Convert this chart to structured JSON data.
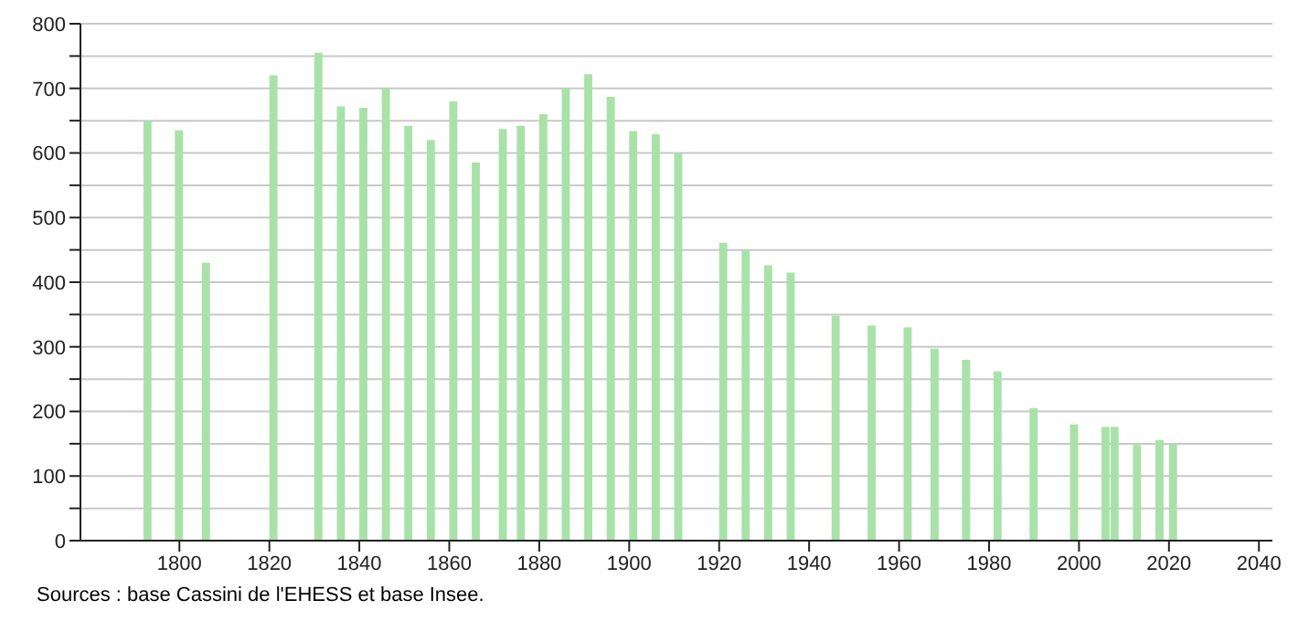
{
  "chart_data": {
    "type": "bar",
    "x": [
      1793,
      1800,
      1806,
      1821,
      1831,
      1836,
      1841,
      1846,
      1851,
      1856,
      1861,
      1866,
      1872,
      1876,
      1881,
      1886,
      1891,
      1896,
      1901,
      1906,
      1911,
      1921,
      1926,
      1931,
      1936,
      1946,
      1954,
      1962,
      1968,
      1975,
      1982,
      1990,
      1999,
      2006,
      2008,
      2013,
      2018,
      2021
    ],
    "values": [
      650,
      635,
      430,
      720,
      755,
      672,
      670,
      700,
      642,
      620,
      680,
      585,
      637,
      642,
      660,
      700,
      722,
      687,
      634,
      629,
      600,
      461,
      450,
      426,
      415,
      348,
      333,
      330,
      297,
      280,
      262,
      205,
      180,
      176,
      176,
      148,
      156,
      150
    ],
    "color": "#a8e2a8",
    "xlim": [
      1778,
      2043
    ],
    "xticks": [
      1800,
      1820,
      1840,
      1860,
      1880,
      1900,
      1920,
      1940,
      1960,
      1980,
      2000,
      2020,
      2040
    ],
    "ylim": [
      0,
      800
    ],
    "yticks": [
      0,
      {
        "value": 50,
        "label": null
      },
      100,
      {
        "value": 150,
        "label": null
      },
      200,
      {
        "value": 250,
        "label": null
      },
      300,
      {
        "value": 350,
        "label": null
      },
      400,
      {
        "value": 450,
        "label": null
      },
      500,
      {
        "value": 550,
        "label": null
      },
      600,
      {
        "value": 650,
        "label": null
      },
      700,
      {
        "value": 750,
        "label": null
      },
      800
    ],
    "grid": "y",
    "annotations": [
      "Sources : base Cassini de l'EHESS et base Insee."
    ]
  }
}
